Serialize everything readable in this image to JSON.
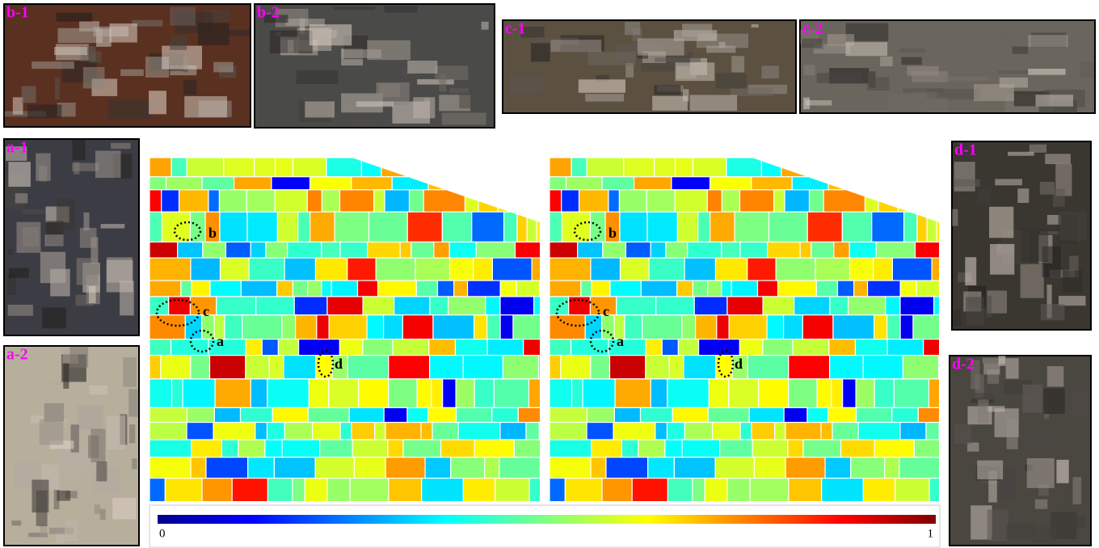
{
  "panels": [
    {
      "label": "b-1"
    },
    {
      "label": "b-2"
    },
    {
      "label": "c-1"
    },
    {
      "label": "c-2"
    },
    {
      "label": "a-1"
    },
    {
      "label": "a-2"
    },
    {
      "label": "d-1"
    },
    {
      "label": "d-2"
    }
  ],
  "maps": [
    {
      "annotations": [
        "b",
        "c",
        "a",
        "d"
      ]
    },
    {
      "annotations": [
        "b",
        "c",
        "a",
        "d"
      ]
    }
  ],
  "colorbar": {
    "ticks": [
      0,
      1
    ]
  }
}
